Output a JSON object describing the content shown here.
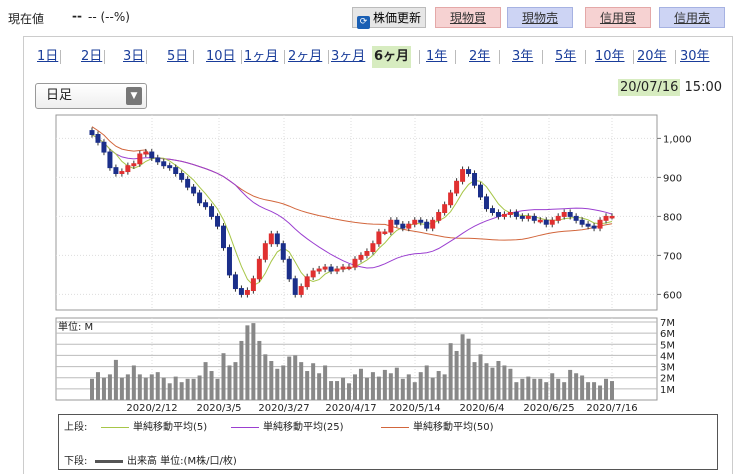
{
  "header": {
    "price_label": "現在値",
    "price_value": "--",
    "price_change": "-- (--%)",
    "update_label": "株価更新",
    "genbutsu_buy": "現物買",
    "genbutsu_sell": "現物売",
    "shinyo_buy": "信用買",
    "shinyo_sell": "信用売"
  },
  "periods": [
    "1日",
    "2日",
    "3日",
    "5日",
    "10日",
    "1ヶ月",
    "2ヶ月",
    "3ヶ月",
    "6ヶ月",
    "1年",
    "2年",
    "3年",
    "5年",
    "10年",
    "20年",
    "30年"
  ],
  "active_period": "6ヶ月",
  "candle_select": "日足",
  "as_of_date": "20/07/16",
  "as_of_time": "15:00",
  "price_axis": [
    "1,000",
    "900",
    "800",
    "700",
    "600"
  ],
  "volume_axis": [
    "7M",
    "6M",
    "5M",
    "4M",
    "3M",
    "2M",
    "1M"
  ],
  "volume_unit": "単位: M",
  "date_axis": [
    "2020/2/12",
    "2020/3/5",
    "2020/3/27",
    "2020/4/17",
    "2020/5/14",
    "2020/6/4",
    "2020/6/25",
    "2020/7/16"
  ],
  "legend": {
    "upper_label": "上段:",
    "ma5": "単純移動平均(5)",
    "ma25": "単純移動平均(25)",
    "ma50": "単純移動平均(50)",
    "lower_label": "下段:",
    "volume": "出来高 単位:(M株/口/枚)"
  },
  "colors": {
    "ma5": "#a7c648",
    "ma25": "#9b3fd0",
    "ma50": "#d2663c",
    "candle_up": "#ffffff",
    "candle_down": "#1b2f8a",
    "bull_body": "#e03030",
    "volume": "#888888"
  },
  "chart_data": {
    "type": "candlestick",
    "ylim": [
      560,
      1060
    ],
    "volume_ylim": [
      0,
      7
    ],
    "closes": [
      1010,
      990,
      965,
      925,
      910,
      915,
      930,
      935,
      960,
      965,
      950,
      940,
      930,
      925,
      910,
      895,
      875,
      860,
      835,
      825,
      800,
      775,
      720,
      650,
      615,
      600,
      610,
      640,
      690,
      730,
      755,
      730,
      690,
      640,
      600,
      620,
      645,
      660,
      665,
      670,
      660,
      665,
      670,
      670,
      690,
      700,
      710,
      730,
      760,
      760,
      790,
      780,
      770,
      780,
      790,
      785,
      770,
      790,
      810,
      830,
      860,
      890,
      920,
      910,
      880,
      850,
      820,
      810,
      800,
      805,
      810,
      800,
      795,
      800,
      790,
      790,
      780,
      790,
      800,
      810,
      800,
      790,
      780,
      775,
      770,
      790,
      800,
      800
    ],
    "volumes": [
      1.9,
      2.5,
      2.0,
      2.3,
      3.6,
      2.0,
      2.3,
      3.1,
      2.3,
      2.0,
      2.3,
      2.5,
      2.0,
      1.5,
      2.1,
      1.6,
      1.9,
      1.9,
      2.2,
      3.4,
      2.6,
      1.9,
      4.2,
      3.1,
      3.4,
      5.3,
      6.7,
      6.9,
      5.3,
      4.1,
      3.5,
      2.8,
      3.1,
      3.9,
      4.0,
      3.4,
      2.6,
      3.3,
      2.4,
      3.1,
      1.7,
      1.7,
      2.0,
      1.5,
      2.3,
      2.8,
      2.0,
      2.5,
      2.1,
      2.7,
      2.4,
      2.9,
      1.9,
      2.3,
      1.6,
      2.5,
      3.1,
      2.0,
      2.6,
      2.3,
      5.1,
      4.4,
      5.9,
      5.5,
      3.4,
      4.1,
      3.3,
      2.9,
      3.5,
      3.1,
      2.8,
      1.6,
      1.9,
      2.1,
      1.9,
      1.9,
      1.6,
      2.4,
      1.9,
      1.6,
      2.7,
      2.4,
      2.2,
      1.6,
      1.6,
      1.3,
      1.9,
      1.7
    ]
  }
}
